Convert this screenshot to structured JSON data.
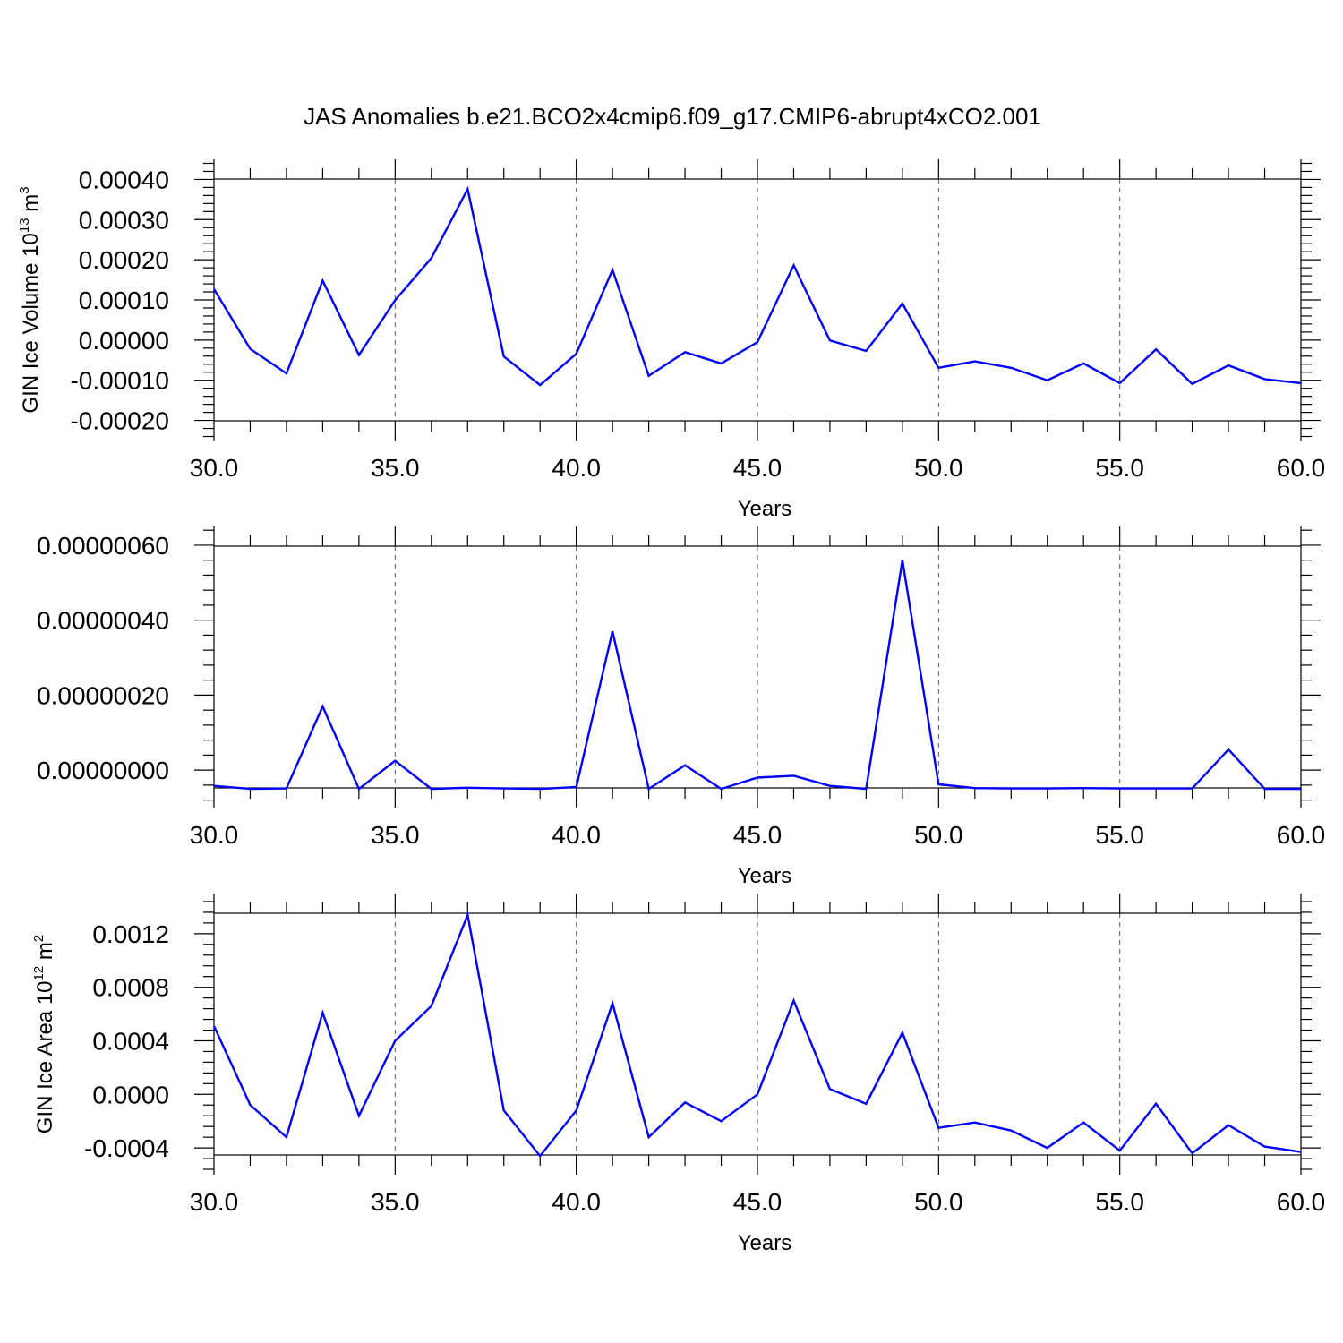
{
  "title": "JAS Anomalies b.e21.BCO2x4cmip6.f09_g17.CMIP6-abrupt4xCO2.001",
  "colors": {
    "line": "#0000ff",
    "axis": "#000000",
    "grid": "#555555"
  },
  "chart_data": [
    {
      "type": "line",
      "xlabel": "Years",
      "ylabel": "GIN Ice Volume 10",
      "ylabel_exp": "13",
      "ylabel_unit": " m",
      "ylabel_unit_exp": "3",
      "xlim": [
        30,
        60
      ],
      "ylim": [
        -0.00025,
        0.00045
      ],
      "xticks": [
        30,
        35,
        40,
        45,
        50,
        55,
        60
      ],
      "xtick_labels": [
        "30.0",
        "35.0",
        "40.0",
        "45.0",
        "50.0",
        "55.0",
        "60.0"
      ],
      "yticks": [
        -0.0002,
        -0.0001,
        0.0,
        0.0001,
        0.0002,
        0.0003,
        0.0004
      ],
      "ytick_labels": [
        "-0.00020",
        "-0.00010",
        "0.00000",
        "0.00010",
        "0.00020",
        "0.00030",
        "0.00040"
      ],
      "grid": "vertical dashed at major x ticks",
      "series": [
        {
          "x": [
            30,
            31,
            32,
            33,
            34,
            35,
            36,
            37,
            38,
            39,
            40,
            41,
            42,
            43,
            44,
            45,
            46,
            47,
            48,
            49,
            50,
            51,
            52,
            53,
            54,
            55,
            56,
            57,
            58,
            59,
            60
          ],
          "values": [
            0.000127,
            -2.2e-05,
            -8.3e-05,
            0.000148,
            -3.7e-05,
            9.9e-05,
            0.000204,
            0.000376,
            -4.1e-05,
            -0.000112,
            -3.4e-05,
            0.000175,
            -8.9e-05,
            -3e-05,
            -5.8e-05,
            -5e-06,
            0.000186,
            -1e-06,
            -2.7e-05,
            9.1e-05,
            -6.9e-05,
            -5.3e-05,
            -6.9e-05,
            -0.0001,
            -5.8e-05,
            -0.000107,
            -2.3e-05,
            -0.000109,
            -6.3e-05,
            -9.7e-05,
            -0.000107
          ]
        }
      ]
    },
    {
      "type": "line",
      "xlabel": "Years",
      "ylabel": "",
      "xlim": [
        30,
        60
      ],
      "ylim": [
        -1e-07,
        6.5e-07
      ],
      "xticks": [
        30,
        35,
        40,
        45,
        50,
        55,
        60
      ],
      "xtick_labels": [
        "30.0",
        "35.0",
        "40.0",
        "45.0",
        "50.0",
        "55.0",
        "60.0"
      ],
      "yticks": [
        0.0,
        2e-07,
        4e-07,
        6e-07
      ],
      "ytick_labels": [
        "0.00000000",
        "0.00000020",
        "0.00000040",
        "0.00000060"
      ],
      "grid": "vertical dashed at major x ticks",
      "series": [
        {
          "x": [
            30,
            31,
            32,
            33,
            34,
            35,
            36,
            37,
            38,
            39,
            40,
            41,
            42,
            43,
            44,
            45,
            46,
            47,
            48,
            49,
            50,
            51,
            52,
            53,
            54,
            55,
            56,
            57,
            58,
            59,
            60
          ],
          "values": [
            -4.2e-08,
            -5e-08,
            -4.9e-08,
            1.7e-07,
            -5e-08,
            2.5e-08,
            -5e-08,
            -4.7e-08,
            -4.9e-08,
            -5e-08,
            -4.5e-08,
            3.7e-07,
            -5e-08,
            1.3e-08,
            -5e-08,
            -2e-08,
            -1.5e-08,
            -4.2e-08,
            -5e-08,
            5.6e-07,
            -3.8e-08,
            -4.8e-08,
            -4.9e-08,
            -4.9e-08,
            -4.8e-08,
            -4.9e-08,
            -4.9e-08,
            -4.9e-08,
            5.5e-08,
            -5e-08,
            -5e-08
          ]
        }
      ]
    },
    {
      "type": "line",
      "xlabel": "Years",
      "ylabel": "GIN Ice Area 10",
      "ylabel_exp": "12",
      "ylabel_unit": " m",
      "ylabel_unit_exp": "2",
      "xlim": [
        30,
        60
      ],
      "ylim": [
        -0.0006,
        0.0015
      ],
      "xticks": [
        30,
        35,
        40,
        45,
        50,
        55,
        60
      ],
      "xtick_labels": [
        "30.0",
        "35.0",
        "40.0",
        "45.0",
        "50.0",
        "55.0",
        "60.0"
      ],
      "yticks": [
        -0.0004,
        0.0,
        0.0004,
        0.0008,
        0.0012
      ],
      "ytick_labels": [
        "-0.0004",
        "0.0000",
        "0.0004",
        "0.0008",
        "0.0012"
      ],
      "grid": "vertical dashed at major x ticks",
      "series": [
        {
          "x": [
            30,
            31,
            32,
            33,
            34,
            35,
            36,
            37,
            38,
            39,
            40,
            41,
            42,
            43,
            44,
            45,
            46,
            47,
            48,
            49,
            50,
            51,
            52,
            53,
            54,
            55,
            56,
            57,
            58,
            59,
            60
          ],
          "values": [
            0.00051,
            -8e-05,
            -0.00032,
            0.00061,
            -0.00016,
            0.0004,
            0.00066,
            0.00134,
            -0.00012,
            -0.00046,
            -0.00012,
            0.00068,
            -0.00032,
            -6e-05,
            -0.0002,
            0.0,
            0.0007,
            4e-05,
            -7e-05,
            0.00046,
            -0.00025,
            -0.00021,
            -0.00027,
            -0.0004,
            -0.00021,
            -0.00042,
            -7e-05,
            -0.00044,
            -0.00023,
            -0.00039,
            -0.00043
          ]
        }
      ]
    }
  ]
}
